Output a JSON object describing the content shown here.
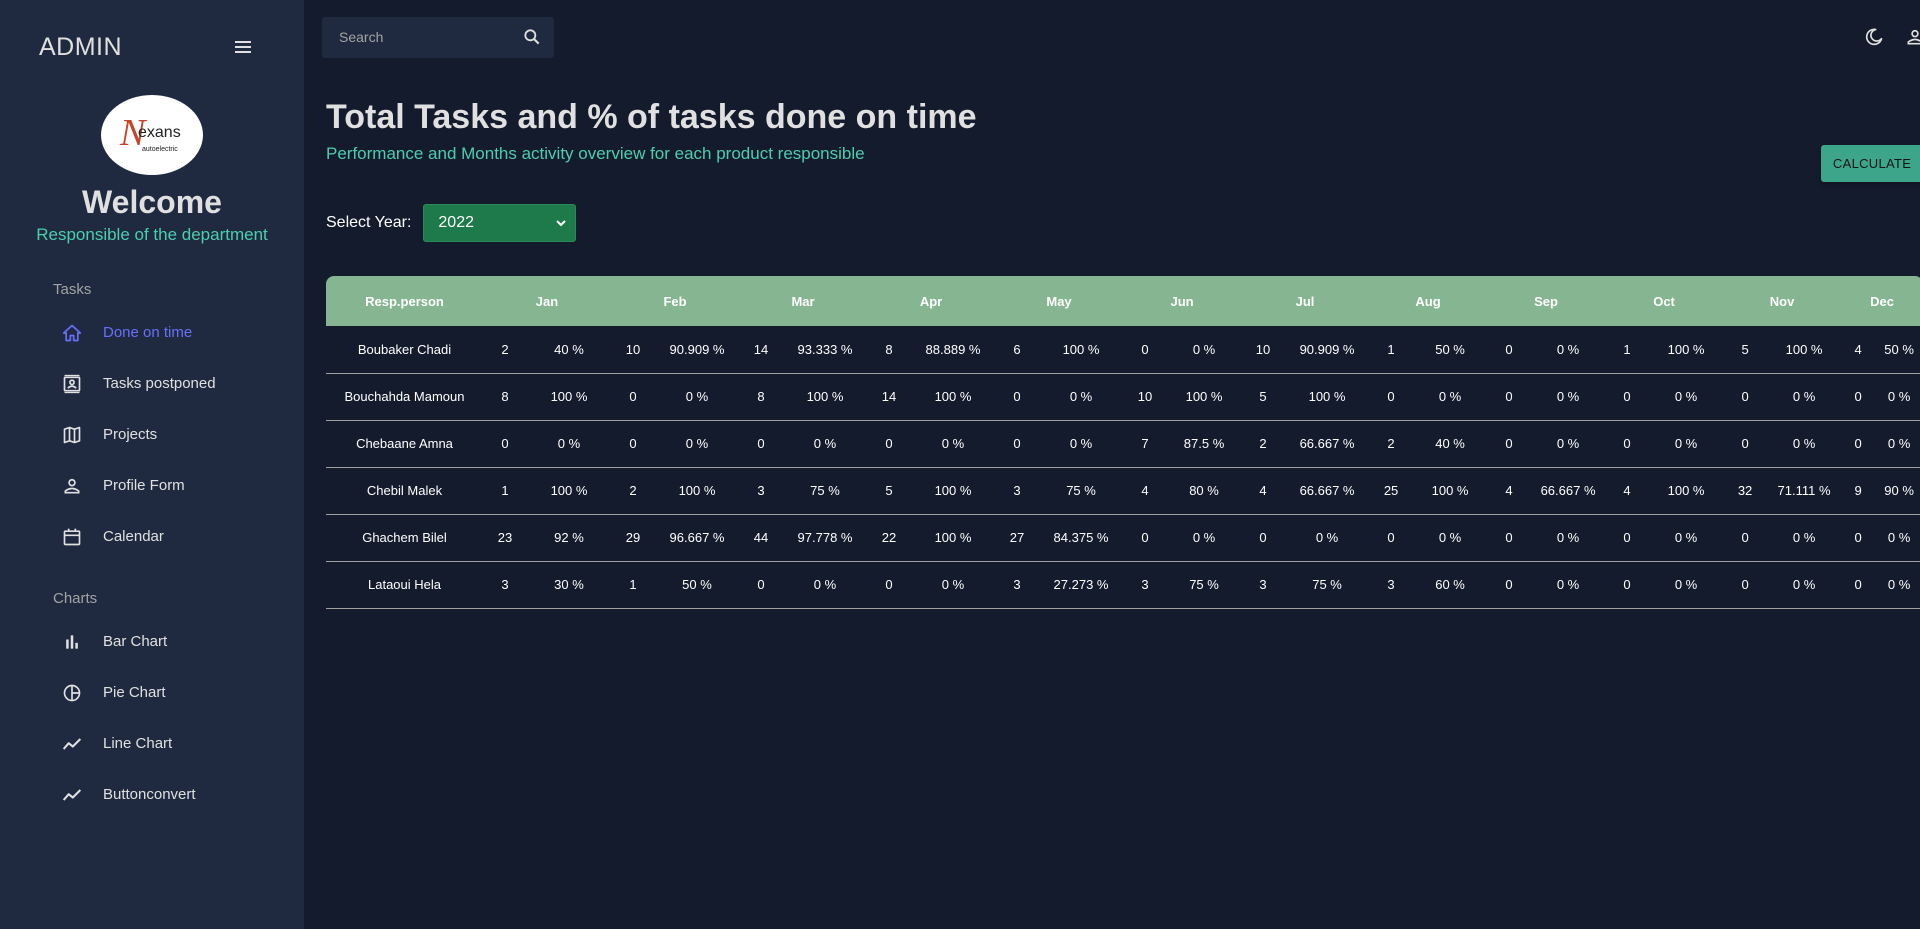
{
  "sidebar": {
    "brand": "ADMIN",
    "welcome": "Welcome",
    "role": "Responsible of the department",
    "sections": {
      "tasks": "Tasks",
      "charts": "Charts"
    },
    "items": [
      {
        "label": "Done on time",
        "icon": "home-icon",
        "active": true
      },
      {
        "label": "Tasks postponed",
        "icon": "contacts-icon"
      },
      {
        "label": "Projects",
        "icon": "map-icon"
      },
      {
        "label": "Profile Form",
        "icon": "person-icon"
      },
      {
        "label": "Calendar",
        "icon": "calendar-icon"
      },
      {
        "label": "Bar Chart",
        "icon": "bar-chart-icon"
      },
      {
        "label": "Pie Chart",
        "icon": "pie-chart-icon"
      },
      {
        "label": "Line Chart",
        "icon": "line-chart-icon"
      },
      {
        "label": "Buttonconvert",
        "icon": "line-chart-icon"
      }
    ],
    "logo_text": "exans",
    "logo_initial": "N",
    "logo_sub": "autoelectric"
  },
  "topbar": {
    "search_placeholder": "Search"
  },
  "header": {
    "title": "Total Tasks and % of tasks done on time",
    "subtitle": "Performance and Months activity overview for each product responsible",
    "calculate_label": "CALCULATE"
  },
  "year": {
    "label": "Select Year:",
    "selected": "2022"
  },
  "colors": {
    "accent_green": "#4cceac",
    "active_blue": "#6870fa",
    "header_green": "#86b592"
  },
  "table": {
    "columns": [
      "Resp.person",
      "Jan",
      "Feb",
      "Mar",
      "Apr",
      "May",
      "Jun",
      "Jul",
      "Aug",
      "Sep",
      "Oct",
      "Nov",
      "Dec"
    ],
    "rows": [
      {
        "name": "Boubaker Chadi",
        "cells": [
          [
            "2",
            "40 %"
          ],
          [
            "10",
            "90.909 %"
          ],
          [
            "14",
            "93.333 %"
          ],
          [
            "8",
            "88.889 %"
          ],
          [
            "6",
            "100 %"
          ],
          [
            "0",
            "0 %"
          ],
          [
            "10",
            "90.909 %"
          ],
          [
            "1",
            "50 %"
          ],
          [
            "0",
            "0 %"
          ],
          [
            "1",
            "100 %"
          ],
          [
            "5",
            "100 %"
          ],
          [
            "4",
            "50 %"
          ]
        ]
      },
      {
        "name": "Bouchahda Mamoun",
        "cells": [
          [
            "8",
            "100 %"
          ],
          [
            "0",
            "0 %"
          ],
          [
            "8",
            "100 %"
          ],
          [
            "14",
            "100 %"
          ],
          [
            "0",
            "0 %"
          ],
          [
            "10",
            "100 %"
          ],
          [
            "5",
            "100 %"
          ],
          [
            "0",
            "0 %"
          ],
          [
            "0",
            "0 %"
          ],
          [
            "0",
            "0 %"
          ],
          [
            "0",
            "0 %"
          ],
          [
            "0",
            "0 %"
          ]
        ]
      },
      {
        "name": "Chebaane Amna",
        "cells": [
          [
            "0",
            "0 %"
          ],
          [
            "0",
            "0 %"
          ],
          [
            "0",
            "0 %"
          ],
          [
            "0",
            "0 %"
          ],
          [
            "0",
            "0 %"
          ],
          [
            "7",
            "87.5 %"
          ],
          [
            "2",
            "66.667 %"
          ],
          [
            "2",
            "40 %"
          ],
          [
            "0",
            "0 %"
          ],
          [
            "0",
            "0 %"
          ],
          [
            "0",
            "0 %"
          ],
          [
            "0",
            "0 %"
          ]
        ]
      },
      {
        "name": "Chebil Malek",
        "cells": [
          [
            "1",
            "100 %"
          ],
          [
            "2",
            "100 %"
          ],
          [
            "3",
            "75 %"
          ],
          [
            "5",
            "100 %"
          ],
          [
            "3",
            "75 %"
          ],
          [
            "4",
            "80 %"
          ],
          [
            "4",
            "66.667 %"
          ],
          [
            "25",
            "100 %"
          ],
          [
            "4",
            "66.667 %"
          ],
          [
            "4",
            "100 %"
          ],
          [
            "32",
            "71.111 %"
          ],
          [
            "9",
            "90 %"
          ]
        ]
      },
      {
        "name": "Ghachem Bilel",
        "cells": [
          [
            "23",
            "92 %"
          ],
          [
            "29",
            "96.667 %"
          ],
          [
            "44",
            "97.778 %"
          ],
          [
            "22",
            "100 %"
          ],
          [
            "27",
            "84.375 %"
          ],
          [
            "0",
            "0 %"
          ],
          [
            "0",
            "0 %"
          ],
          [
            "0",
            "0 %"
          ],
          [
            "0",
            "0 %"
          ],
          [
            "0",
            "0 %"
          ],
          [
            "0",
            "0 %"
          ],
          [
            "0",
            "0 %"
          ]
        ]
      },
      {
        "name": "Lataoui Hela",
        "cells": [
          [
            "3",
            "30 %"
          ],
          [
            "1",
            "50 %"
          ],
          [
            "0",
            "0 %"
          ],
          [
            "0",
            "0 %"
          ],
          [
            "3",
            "27.273 %"
          ],
          [
            "3",
            "75 %"
          ],
          [
            "3",
            "75 %"
          ],
          [
            "3",
            "60 %"
          ],
          [
            "0",
            "0 %"
          ],
          [
            "0",
            "0 %"
          ],
          [
            "0",
            "0 %"
          ],
          [
            "0",
            "0 %"
          ]
        ]
      }
    ]
  }
}
